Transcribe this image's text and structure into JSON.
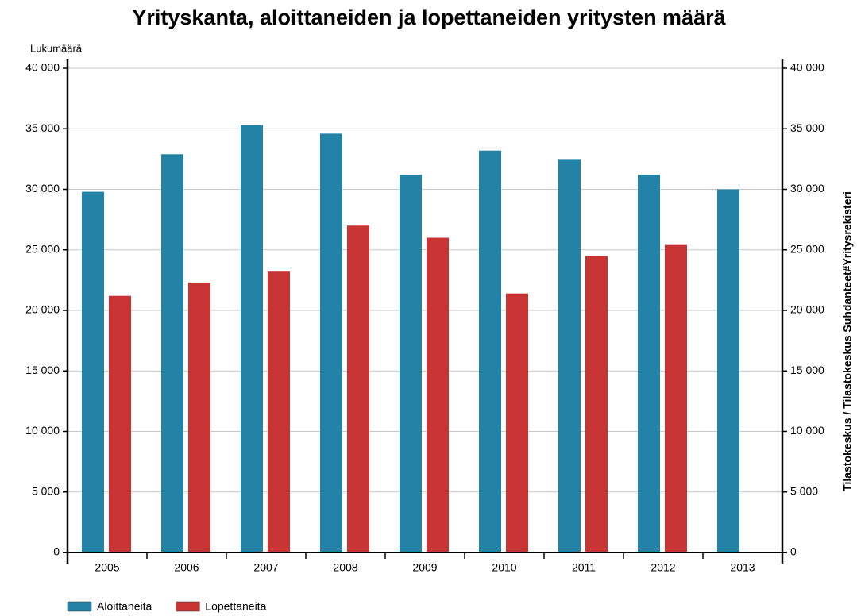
{
  "chart_data": {
    "type": "bar",
    "title": "Yrityskanta, aloittaneiden ja lopettaneiden yritysten määrä",
    "y_label": "Lukumäärä",
    "source": "Tilastokeskus / Tilastokeskus Suhdanteet#Yritysrekisteri",
    "categories": [
      "2005",
      "2006",
      "2007",
      "2008",
      "2009",
      "2010",
      "2011",
      "2012",
      "2013"
    ],
    "series": [
      {
        "name": "Aloittaneita",
        "color": "#2383a6",
        "values": [
          29800,
          32900,
          35300,
          34600,
          31200,
          33200,
          32500,
          31200,
          30000
        ]
      },
      {
        "name": "Lopettaneita",
        "color": "#c83434",
        "values": [
          21200,
          22300,
          23200,
          27000,
          26000,
          21400,
          24500,
          25400,
          null
        ]
      }
    ],
    "ylim": [
      0,
      40000
    ],
    "yticks": [
      0,
      {
        "value": 5000,
        "label": "5 000"
      },
      {
        "value": 10000,
        "label": "10 000"
      },
      {
        "value": 15000,
        "label": "15 000"
      },
      {
        "value": 20000,
        "label": "20 000"
      },
      {
        "value": 25000,
        "label": "25 000"
      },
      {
        "value": 30000,
        "label": "30 000"
      },
      {
        "value": 35000,
        "label": "35 000"
      },
      {
        "value": 40000,
        "label": "40 000"
      }
    ],
    "y2lim": [
      0,
      40000
    ],
    "y2ticks": [
      0,
      {
        "value": 5000,
        "label": "5 000"
      },
      {
        "value": 10000,
        "label": "10 000"
      },
      {
        "value": 15000,
        "label": "15 000"
      },
      {
        "value": 20000,
        "label": "20 000"
      },
      {
        "value": 25000,
        "label": "25 000"
      },
      {
        "value": 30000,
        "label": "30 000"
      },
      {
        "value": 35000,
        "label": "35 000"
      },
      {
        "value": 40000,
        "label": "40 000"
      }
    ],
    "grid": true,
    "legend": "bottom-left"
  }
}
